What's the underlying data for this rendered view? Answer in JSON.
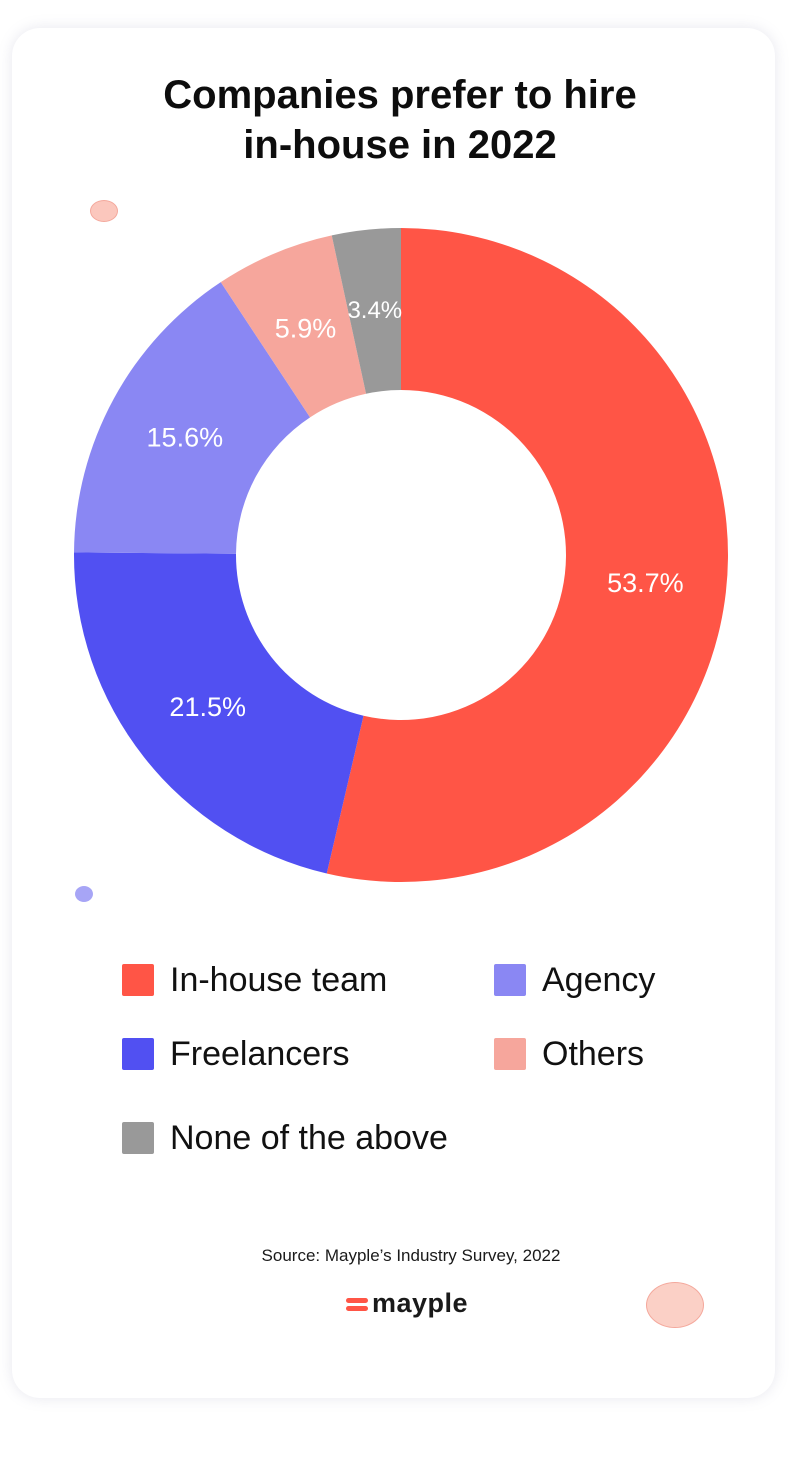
{
  "chart_data": {
    "type": "pie",
    "variant": "donut",
    "title": "Companies prefer to hire in-house in 2022",
    "title_lines": [
      "Companies prefer to hire",
      "in-house in 2022"
    ],
    "slices": [
      {
        "name": "In-house team",
        "value": 53.7,
        "label": "53.7%",
        "color": "#ff5546"
      },
      {
        "name": "Freelancers",
        "value": 21.5,
        "label": "21.5%",
        "color": "#5150f2"
      },
      {
        "name": "Agency",
        "value": 15.6,
        "label": "15.6%",
        "color": "#8a87f3"
      },
      {
        "name": "Others",
        "value": 5.9,
        "label": "5.9%",
        "color": "#f6a69c"
      },
      {
        "name": "None of the above",
        "value": 3.4,
        "label": "3.4%",
        "color": "#999999"
      }
    ],
    "legend": {
      "placement": "bottom",
      "items": [
        {
          "name": "In-house team",
          "color": "#ff5546"
        },
        {
          "name": "Agency",
          "color": "#8a87f3"
        },
        {
          "name": "Freelancers",
          "color": "#5150f2"
        },
        {
          "name": "Others",
          "color": "#f6a69c"
        },
        {
          "name": "None of the above",
          "color": "#999999"
        }
      ]
    },
    "start_angle": "top",
    "direction": "clockwise"
  },
  "footer": {
    "source": "Source: Mayple’s Industry Survey, 2022",
    "brand": "mayple"
  }
}
